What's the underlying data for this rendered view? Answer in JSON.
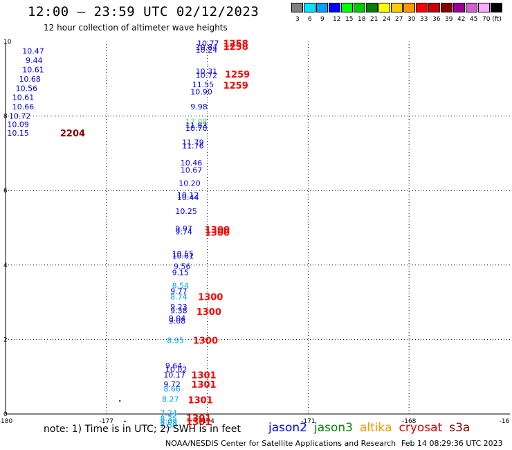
{
  "title": "12:00 – 23:59 UTC 02/12/2023",
  "subtitle": "12 hour collection of altimeter wave heights",
  "color_scale": {
    "labels": [
      "3",
      "6",
      "9",
      "12",
      "15",
      "18",
      "21",
      "24",
      "27",
      "30",
      "33",
      "36",
      "39",
      "42",
      "45",
      "70 (ft)"
    ],
    "colors": [
      "#808080",
      "#00e5ff",
      "#00a0ff",
      "#0000ff",
      "#00ff00",
      "#00cc00",
      "#008000",
      "#ffff00",
      "#ffcc00",
      "#ff9900",
      "#ff0000",
      "#cc0000",
      "#880000",
      "#990099",
      "#cc66cc",
      "#ffaaff",
      "#000000"
    ]
  },
  "chart_data": {
    "type": "scatter",
    "x_ticks": [
      "-180",
      "-177",
      "-174",
      "-171",
      "-168",
      "-16"
    ],
    "y_ticks": [
      "10",
      "8",
      "6",
      "4",
      "2",
      "0"
    ],
    "xlim": [
      -180,
      -165
    ],
    "ylim": [
      0,
      10
    ],
    "grid": true,
    "swh_labels": [
      {
        "lon": -179.5,
        "lat": 9.75,
        "text": "10.47",
        "color": "#0000ff"
      },
      {
        "lon": -179.4,
        "lat": 9.5,
        "text": "9.44",
        "color": "#0000ff"
      },
      {
        "lon": -179.5,
        "lat": 9.25,
        "text": "10.61",
        "color": "#0000ff"
      },
      {
        "lon": -179.6,
        "lat": 9.0,
        "text": "10.68",
        "color": "#0000ff"
      },
      {
        "lon": -179.7,
        "lat": 8.75,
        "text": "10.56",
        "color": "#0000ff"
      },
      {
        "lon": -179.8,
        "lat": 8.5,
        "text": "10.61",
        "color": "#0000ff"
      },
      {
        "lon": -179.8,
        "lat": 8.25,
        "text": "10.66",
        "color": "#0000ff"
      },
      {
        "lon": -179.9,
        "lat": 8.0,
        "text": "10.72",
        "color": "#0000ff"
      },
      {
        "lon": -179.95,
        "lat": 7.78,
        "text": "10.09",
        "color": "#0000ff"
      },
      {
        "lon": -179.95,
        "lat": 7.55,
        "text": "10.15",
        "color": "#0000ff"
      },
      {
        "lon": -174.3,
        "lat": 9.95,
        "text": "10.77",
        "color": "#0000ff"
      },
      {
        "lon": -174.35,
        "lat": 9.85,
        "text": "10.84",
        "color": "#0000ff"
      },
      {
        "lon": -174.35,
        "lat": 9.78,
        "text": "10.24",
        "color": "#0000ff"
      },
      {
        "lon": -174.35,
        "lat": 9.2,
        "text": "10.31",
        "color": "#0000ff"
      },
      {
        "lon": -174.35,
        "lat": 9.1,
        "text": "10.72",
        "color": "#0000ff"
      },
      {
        "lon": -174.45,
        "lat": 8.85,
        "text": "11.55",
        "color": "#0000ff"
      },
      {
        "lon": -174.5,
        "lat": 8.65,
        "text": "10.90",
        "color": "#0000ff"
      },
      {
        "lon": -174.5,
        "lat": 8.25,
        "text": "9.98",
        "color": "#0000ff"
      },
      {
        "lon": -174.65,
        "lat": 7.85,
        "text": "17.08",
        "color": "#66dd66"
      },
      {
        "lon": -174.65,
        "lat": 7.75,
        "text": "11.83",
        "color": "#0000ff"
      },
      {
        "lon": -174.65,
        "lat": 7.68,
        "text": "10.70",
        "color": "#0000ff"
      },
      {
        "lon": -174.75,
        "lat": 7.3,
        "text": "11.79",
        "color": "#0000ff"
      },
      {
        "lon": -174.75,
        "lat": 7.2,
        "text": "11.76",
        "color": "#0000ff"
      },
      {
        "lon": -174.8,
        "lat": 6.75,
        "text": "10.46",
        "color": "#0000ff"
      },
      {
        "lon": -174.8,
        "lat": 6.55,
        "text": "10.67",
        "color": "#0000ff"
      },
      {
        "lon": -174.85,
        "lat": 6.2,
        "text": "10.20",
        "color": "#0000ff"
      },
      {
        "lon": -174.9,
        "lat": 5.88,
        "text": "10.12",
        "color": "#0000ff"
      },
      {
        "lon": -174.9,
        "lat": 5.82,
        "text": "10.44",
        "color": "#0000ff"
      },
      {
        "lon": -174.95,
        "lat": 5.45,
        "text": "10.25",
        "color": "#0000ff"
      },
      {
        "lon": -174.95,
        "lat": 4.98,
        "text": "9.97",
        "color": "#0000ff"
      },
      {
        "lon": -174.95,
        "lat": 4.9,
        "text": "9.74",
        "color": "#0000ff"
      },
      {
        "lon": -175.05,
        "lat": 4.3,
        "text": "10.55",
        "color": "#0000ff"
      },
      {
        "lon": -175.05,
        "lat": 4.25,
        "text": "10.61",
        "color": "#0000ff"
      },
      {
        "lon": -175.0,
        "lat": 3.97,
        "text": "9.56",
        "color": "#0000ff"
      },
      {
        "lon": -175.05,
        "lat": 3.8,
        "text": "9.15",
        "color": "#0000ff"
      },
      {
        "lon": -175.05,
        "lat": 3.45,
        "text": "8.54",
        "color": "#00a0ff"
      },
      {
        "lon": -175.1,
        "lat": 3.3,
        "text": "9.77",
        "color": "#0000ff"
      },
      {
        "lon": -175.1,
        "lat": 3.15,
        "text": "8.74",
        "color": "#00a0ff"
      },
      {
        "lon": -175.1,
        "lat": 2.88,
        "text": "9.23",
        "color": "#0000ff"
      },
      {
        "lon": -175.1,
        "lat": 2.78,
        "text": "9.38",
        "color": "#0000ff"
      },
      {
        "lon": -175.15,
        "lat": 2.57,
        "text": "9.04",
        "color": "#0000ff"
      },
      {
        "lon": -175.15,
        "lat": 2.5,
        "text": "9.08",
        "color": "#0000ff"
      },
      {
        "lon": -175.2,
        "lat": 1.98,
        "text": "8.95",
        "color": "#00a0ff"
      },
      {
        "lon": -175.25,
        "lat": 1.3,
        "text": "9.64",
        "color": "#0000ff"
      },
      {
        "lon": -175.25,
        "lat": 1.2,
        "text": "10.02",
        "color": "#0000ff"
      },
      {
        "lon": -175.3,
        "lat": 1.05,
        "text": "10.17",
        "color": "#0000ff"
      },
      {
        "lon": -175.3,
        "lat": 0.8,
        "text": "9.72",
        "color": "#0000ff"
      },
      {
        "lon": -175.3,
        "lat": 0.68,
        "text": "8.66",
        "color": "#00a0ff"
      },
      {
        "lon": -175.35,
        "lat": 0.4,
        "text": "8.27",
        "color": "#00a0ff"
      },
      {
        "lon": -175.4,
        "lat": 0.03,
        "text": "7.24",
        "color": "#00a0ff"
      },
      {
        "lon": -175.4,
        "lat": -0.12,
        "text": "8.35",
        "color": "#00a0ff"
      },
      {
        "lon": -175.4,
        "lat": -0.2,
        "text": "8.09",
        "color": "#00a0ff"
      },
      {
        "lon": -175.4,
        "lat": -0.3,
        "text": "7.50",
        "color": "#00a0ff"
      }
    ],
    "time_labels": [
      {
        "lon": -174.35,
        "lat": 9.95,
        "text": "1258",
        "color": "#ff0000"
      },
      {
        "lon": -174.35,
        "lat": 9.87,
        "text": "1258",
        "color": "#ff0000"
      },
      {
        "lon": -174.3,
        "lat": 9.13,
        "text": "1259",
        "color": "#ff0000"
      },
      {
        "lon": -174.35,
        "lat": 8.83,
        "text": "1259",
        "color": "#ff0000"
      },
      {
        "lon": -179.2,
        "lat": 7.55,
        "text": "2204",
        "color": "#880000"
      },
      {
        "lon": -174.9,
        "lat": 4.95,
        "text": "1300",
        "color": "#ff0000"
      },
      {
        "lon": -174.9,
        "lat": 4.88,
        "text": "1300",
        "color": "#ff0000"
      },
      {
        "lon": -175.1,
        "lat": 3.15,
        "text": "1300",
        "color": "#ff0000"
      },
      {
        "lon": -175.15,
        "lat": 2.75,
        "text": "1300",
        "color": "#ff0000"
      },
      {
        "lon": -175.25,
        "lat": 1.98,
        "text": "1300",
        "color": "#ff0000"
      },
      {
        "lon": -175.3,
        "lat": 1.05,
        "text": "1301",
        "color": "#ff0000"
      },
      {
        "lon": -175.3,
        "lat": 0.8,
        "text": "1301",
        "color": "#ff0000"
      },
      {
        "lon": -175.4,
        "lat": 0.38,
        "text": "1301",
        "color": "#ff0000"
      },
      {
        "lon": -175.45,
        "lat": -0.1,
        "text": "1301",
        "color": "#ff0000"
      },
      {
        "lon": -175.45,
        "lat": -0.2,
        "text": "1301",
        "color": "#ff0000"
      }
    ],
    "dots": [
      {
        "lon": -176.6,
        "lat": 0.35
      },
      {
        "lon": -176.45,
        "lat": -0.2
      }
    ]
  },
  "note": "note: 1) Time is in UTC; 2) SWH is in feet",
  "legend": [
    {
      "name": "jason2",
      "color": "#0000ff"
    },
    {
      "name": "jason3",
      "color": "#008800"
    },
    {
      "name": "altika",
      "color": "#ff9900"
    },
    {
      "name": "cryosat",
      "color": "#dd0000"
    },
    {
      "name": "s3a",
      "color": "#880000"
    }
  ],
  "credit": "NOAA/NESDIS Center for Satellite Applications and Research",
  "timestamp": "Feb 14 08:29:36 UTC 2023"
}
